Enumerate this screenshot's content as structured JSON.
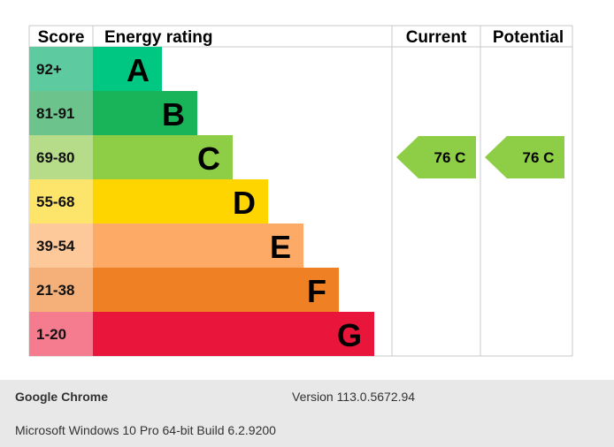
{
  "chart_data": {
    "type": "table",
    "headers": {
      "score": "Score",
      "rating": "Energy rating",
      "current": "Current",
      "potential": "Potential"
    },
    "bands": [
      {
        "score": "92+",
        "letter": "A",
        "score_color": "#5ecaa0",
        "bar_color": "#00c781"
      },
      {
        "score": "81-91",
        "letter": "B",
        "score_color": "#6cc38c",
        "bar_color": "#19b459"
      },
      {
        "score": "69-80",
        "letter": "C",
        "score_color": "#b6dc8a",
        "bar_color": "#8dce46"
      },
      {
        "score": "55-68",
        "letter": "D",
        "score_color": "#fde46a",
        "bar_color": "#ffd500"
      },
      {
        "score": "39-54",
        "letter": "E",
        "score_color": "#fdc99a",
        "bar_color": "#fcaa65"
      },
      {
        "score": "21-38",
        "letter": "F",
        "score_color": "#f5b07a",
        "bar_color": "#ef8023"
      },
      {
        "score": "1-20",
        "letter": "G",
        "score_color": "#f47c8e",
        "bar_color": "#e9153b"
      }
    ],
    "current": {
      "value": 76,
      "letter": "C",
      "label": "76  C",
      "color": "#8dce46"
    },
    "potential": {
      "value": 76,
      "letter": "C",
      "label": "76  C",
      "color": "#8dce46"
    }
  },
  "footer": {
    "browser": "Google Chrome",
    "version": "Version 113.0.5672.94",
    "os": "Microsoft Windows 10 Pro 64-bit Build 6.2.9200"
  }
}
